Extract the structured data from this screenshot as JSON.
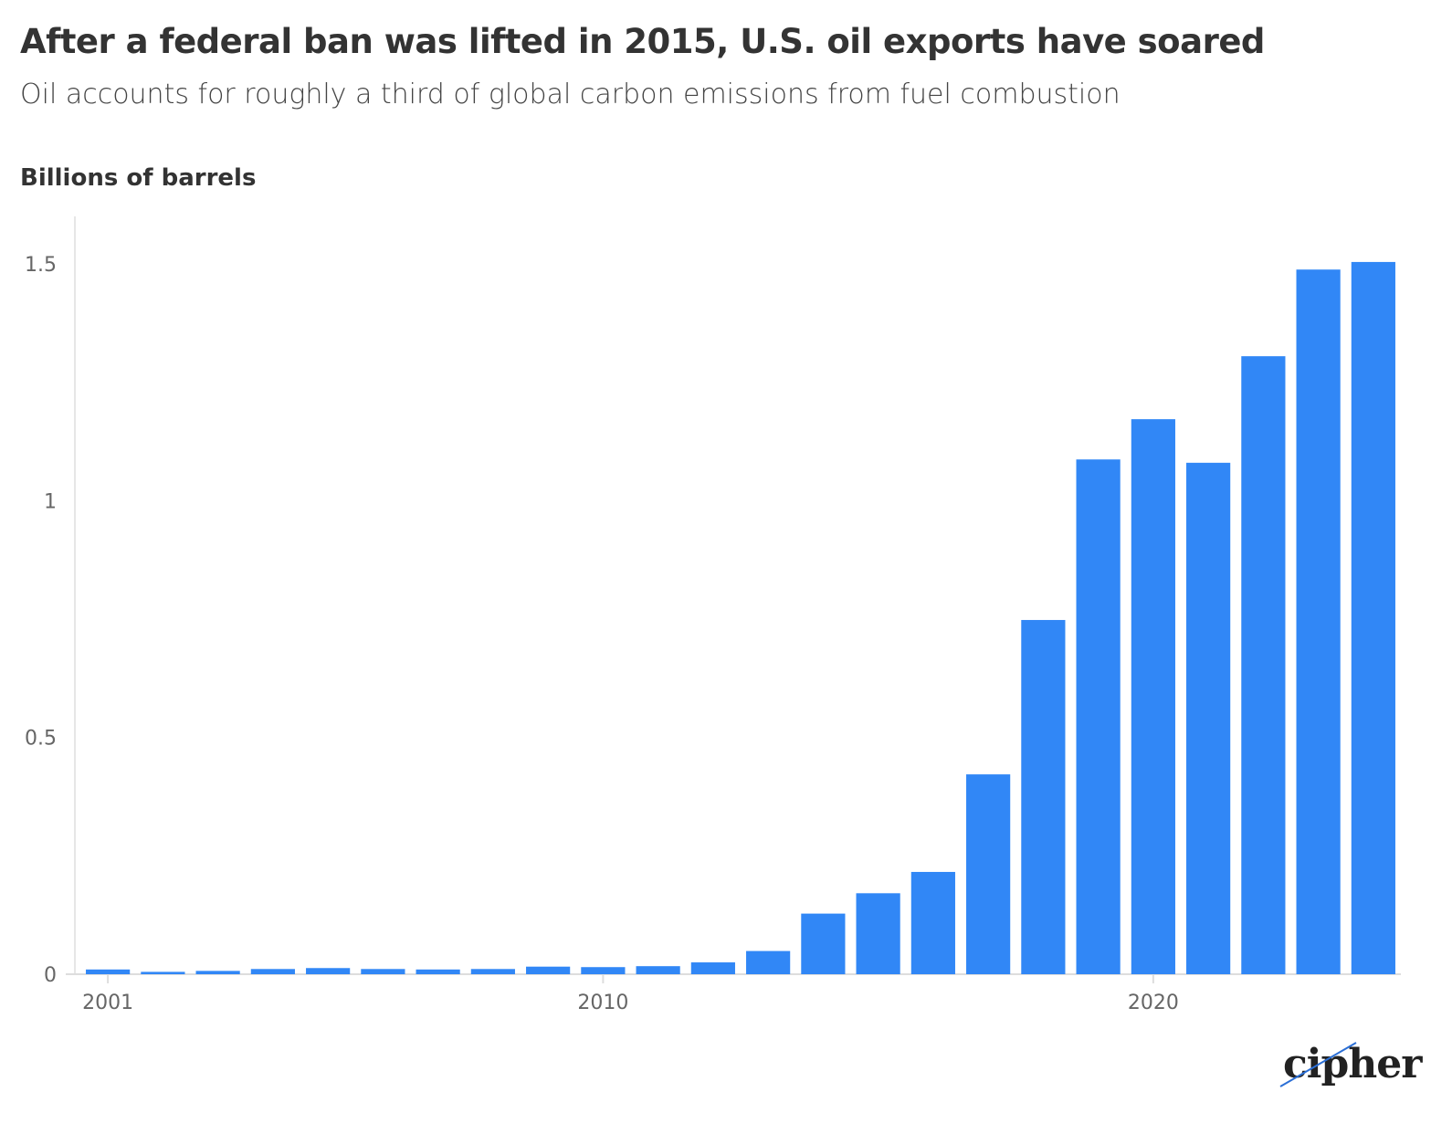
{
  "chart_data": {
    "type": "bar",
    "title": "After a federal ban was lifted in 2015, U.S. oil exports have soared",
    "subtitle": "Oil accounts for roughly a third of global carbon emissions from fuel combustion",
    "ylabel": "Billions of barrels",
    "xlabel": "",
    "categories": [
      2001,
      2002,
      2003,
      2004,
      2005,
      2006,
      2007,
      2008,
      2009,
      2010,
      2011,
      2012,
      2013,
      2014,
      2015,
      2016,
      2017,
      2018,
      2019,
      2020,
      2021,
      2022,
      2023,
      2024
    ],
    "values": [
      0.01,
      0.005,
      0.007,
      0.011,
      0.013,
      0.011,
      0.01,
      0.011,
      0.016,
      0.015,
      0.017,
      0.025,
      0.049,
      0.128,
      0.171,
      0.216,
      0.422,
      0.748,
      1.087,
      1.172,
      1.08,
      1.305,
      1.488,
      1.504
    ],
    "x_ticks": [
      "2001",
      "2010",
      "2020"
    ],
    "y_ticks": [
      "0",
      "0.5",
      "1",
      "1.5"
    ],
    "ylim": [
      0,
      1.6
    ],
    "grid": false,
    "bar_color": "#3187f6"
  },
  "logo": "cipher"
}
